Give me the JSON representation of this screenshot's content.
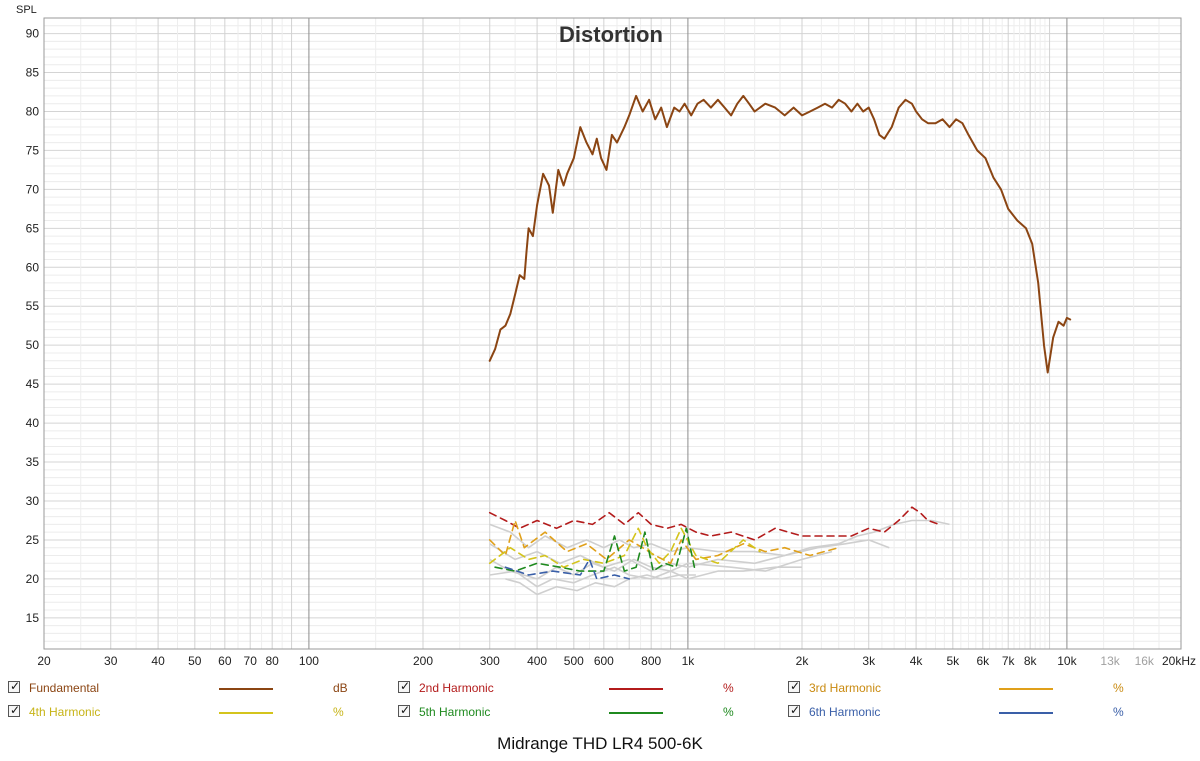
{
  "chart_data": {
    "type": "line",
    "title": "Distortion",
    "ylabel": "SPL",
    "xlabel": "",
    "x_scale": "log",
    "xlim": [
      20,
      20000
    ],
    "ylim": [
      11,
      92
    ],
    "grid": true,
    "x_ticks": [
      {
        "v": 20,
        "label": "20"
      },
      {
        "v": 30,
        "label": "30"
      },
      {
        "v": 40,
        "label": "40"
      },
      {
        "v": 50,
        "label": "50"
      },
      {
        "v": 60,
        "label": "60"
      },
      {
        "v": 70,
        "label": "70"
      },
      {
        "v": 80,
        "label": "80"
      },
      {
        "v": 100,
        "label": "100"
      },
      {
        "v": 200,
        "label": "200"
      },
      {
        "v": 300,
        "label": "300"
      },
      {
        "v": 400,
        "label": "400"
      },
      {
        "v": 500,
        "label": "500"
      },
      {
        "v": 600,
        "label": "600"
      },
      {
        "v": 800,
        "label": "800"
      },
      {
        "v": 1000,
        "label": "1k"
      },
      {
        "v": 2000,
        "label": "2k"
      },
      {
        "v": 3000,
        "label": "3k"
      },
      {
        "v": 4000,
        "label": "4k"
      },
      {
        "v": 5000,
        "label": "5k"
      },
      {
        "v": 6000,
        "label": "6k"
      },
      {
        "v": 7000,
        "label": "7k"
      },
      {
        "v": 8000,
        "label": "8k"
      },
      {
        "v": 10000,
        "label": "10k"
      },
      {
        "v": 13000,
        "label": "13k",
        "faded": true
      },
      {
        "v": 16000,
        "label": "16k",
        "faded": true
      },
      {
        "v": 20000,
        "label": "20kHz"
      }
    ],
    "y_ticks": [
      15,
      20,
      25,
      30,
      35,
      40,
      45,
      50,
      55,
      60,
      65,
      70,
      75,
      80,
      85,
      90
    ],
    "series": [
      {
        "name": "Fundamental",
        "unit": "dB",
        "color": "#8b4513",
        "style": "solid",
        "points": [
          [
            300,
            48
          ],
          [
            310,
            49.5
          ],
          [
            320,
            52
          ],
          [
            330,
            52.5
          ],
          [
            340,
            54
          ],
          [
            350,
            56.5
          ],
          [
            360,
            59
          ],
          [
            370,
            58.5
          ],
          [
            375,
            62
          ],
          [
            380,
            65
          ],
          [
            390,
            64
          ],
          [
            400,
            68
          ],
          [
            415,
            72
          ],
          [
            430,
            70.5
          ],
          [
            440,
            67
          ],
          [
            455,
            72.5
          ],
          [
            470,
            70.5
          ],
          [
            480,
            72
          ],
          [
            500,
            74
          ],
          [
            520,
            78
          ],
          [
            540,
            76
          ],
          [
            560,
            74.5
          ],
          [
            575,
            76.5
          ],
          [
            590,
            74
          ],
          [
            610,
            72.5
          ],
          [
            630,
            77
          ],
          [
            650,
            76
          ],
          [
            680,
            78
          ],
          [
            700,
            79.5
          ],
          [
            730,
            82
          ],
          [
            760,
            80
          ],
          [
            790,
            81.5
          ],
          [
            820,
            79
          ],
          [
            850,
            80.5
          ],
          [
            880,
            78
          ],
          [
            920,
            80.5
          ],
          [
            950,
            80
          ],
          [
            980,
            81
          ],
          [
            1020,
            79.5
          ],
          [
            1060,
            81
          ],
          [
            1100,
            81.5
          ],
          [
            1150,
            80.5
          ],
          [
            1200,
            81.5
          ],
          [
            1250,
            80.5
          ],
          [
            1300,
            79.5
          ],
          [
            1350,
            81
          ],
          [
            1400,
            82
          ],
          [
            1450,
            81
          ],
          [
            1500,
            80
          ],
          [
            1600,
            81
          ],
          [
            1700,
            80.5
          ],
          [
            1800,
            79.5
          ],
          [
            1900,
            80.5
          ],
          [
            2000,
            79.5
          ],
          [
            2100,
            80
          ],
          [
            2200,
            80.5
          ],
          [
            2300,
            81
          ],
          [
            2400,
            80.5
          ],
          [
            2500,
            81.5
          ],
          [
            2600,
            81
          ],
          [
            2700,
            80
          ],
          [
            2800,
            81
          ],
          [
            2900,
            80
          ],
          [
            3000,
            80.5
          ],
          [
            3100,
            79
          ],
          [
            3200,
            77
          ],
          [
            3300,
            76.5
          ],
          [
            3450,
            78
          ],
          [
            3600,
            80.5
          ],
          [
            3750,
            81.5
          ],
          [
            3900,
            81
          ],
          [
            4000,
            80
          ],
          [
            4150,
            79
          ],
          [
            4300,
            78.5
          ],
          [
            4500,
            78.5
          ],
          [
            4700,
            79
          ],
          [
            4900,
            78
          ],
          [
            5100,
            79
          ],
          [
            5300,
            78.5
          ],
          [
            5500,
            77
          ],
          [
            5800,
            75
          ],
          [
            6100,
            74
          ],
          [
            6400,
            71.5
          ],
          [
            6700,
            70
          ],
          [
            7000,
            67.5
          ],
          [
            7400,
            66
          ],
          [
            7800,
            65
          ],
          [
            8100,
            63
          ],
          [
            8400,
            58
          ],
          [
            8700,
            50
          ],
          [
            8900,
            46.5
          ],
          [
            9200,
            51
          ],
          [
            9500,
            53
          ],
          [
            9800,
            52.5
          ],
          [
            10000,
            53.5
          ],
          [
            10200,
            53.3
          ]
        ]
      },
      {
        "name": "2nd Harmonic",
        "unit": "%",
        "color": "#b31b1b",
        "style": "dashed",
        "points": [
          [
            300,
            28.5
          ],
          [
            330,
            27.5
          ],
          [
            360,
            26.5
          ],
          [
            400,
            27.5
          ],
          [
            450,
            26.5
          ],
          [
            500,
            27.5
          ],
          [
            560,
            27
          ],
          [
            620,
            28.5
          ],
          [
            680,
            27
          ],
          [
            740,
            28.5
          ],
          [
            800,
            27
          ],
          [
            880,
            26.5
          ],
          [
            960,
            27
          ],
          [
            1050,
            26
          ],
          [
            1150,
            25.5
          ],
          [
            1300,
            26
          ],
          [
            1500,
            25
          ],
          [
            1700,
            26.5
          ],
          [
            2000,
            25.5
          ],
          [
            2300,
            25.5
          ],
          [
            2700,
            25.5
          ],
          [
            3000,
            26.5
          ],
          [
            3300,
            26
          ],
          [
            3600,
            27.5
          ],
          [
            3900,
            29.2
          ],
          [
            4100,
            28.5
          ],
          [
            4300,
            27.5
          ],
          [
            4600,
            27
          ]
        ]
      },
      {
        "name": "3rd Harmonic",
        "unit": "%",
        "color": "#e0a01a",
        "style": "dashed",
        "points": [
          [
            300,
            25
          ],
          [
            330,
            23
          ],
          [
            350,
            27.5
          ],
          [
            370,
            24
          ],
          [
            420,
            26
          ],
          [
            480,
            23.5
          ],
          [
            540,
            24.5
          ],
          [
            610,
            22.5
          ],
          [
            700,
            25
          ],
          [
            760,
            24
          ],
          [
            820,
            23
          ],
          [
            900,
            22
          ],
          [
            960,
            25
          ],
          [
            1050,
            22.5
          ],
          [
            1200,
            23
          ],
          [
            1400,
            24.5
          ],
          [
            1600,
            23.5
          ],
          [
            1800,
            24
          ],
          [
            2100,
            23
          ],
          [
            2500,
            24
          ]
        ]
      },
      {
        "name": "4th Harmonic",
        "unit": "%",
        "color": "#d4c41c",
        "style": "dashed",
        "points": [
          [
            300,
            22
          ],
          [
            340,
            24
          ],
          [
            380,
            22.5
          ],
          [
            420,
            23
          ],
          [
            470,
            21.5
          ],
          [
            530,
            22.5
          ],
          [
            600,
            22
          ],
          [
            680,
            23
          ],
          [
            740,
            26.5
          ],
          [
            780,
            24
          ],
          [
            840,
            22
          ],
          [
            900,
            23.5
          ],
          [
            960,
            26.5
          ],
          [
            1050,
            23
          ],
          [
            1200,
            22
          ],
          [
            1400,
            25
          ],
          [
            1550,
            23.5
          ]
        ]
      },
      {
        "name": "5th Harmonic",
        "unit": "%",
        "color": "#1f8a1f",
        "style": "dashed",
        "points": [
          [
            310,
            21.5
          ],
          [
            350,
            21
          ],
          [
            400,
            22
          ],
          [
            460,
            21.5
          ],
          [
            520,
            21
          ],
          [
            600,
            21
          ],
          [
            640,
            25.5
          ],
          [
            680,
            21
          ],
          [
            730,
            21.5
          ],
          [
            770,
            26
          ],
          [
            810,
            21
          ],
          [
            870,
            22
          ],
          [
            930,
            21.5
          ],
          [
            990,
            26.5
          ],
          [
            1040,
            21.5
          ]
        ]
      },
      {
        "name": "6th Harmonic",
        "unit": "%",
        "color": "#3a5fa8",
        "style": "dashed",
        "points": [
          [
            330,
            21.5
          ],
          [
            380,
            20.5
          ],
          [
            440,
            21
          ],
          [
            520,
            20.5
          ],
          [
            550,
            22.5
          ],
          [
            575,
            20
          ],
          [
            640,
            20.5
          ],
          [
            700,
            20
          ]
        ]
      }
    ],
    "background_traces": [
      [
        [
          300,
          27
        ],
        [
          340,
          26
        ],
        [
          380,
          24
        ],
        [
          420,
          25.5
        ],
        [
          480,
          24
        ],
        [
          540,
          25
        ],
        [
          600,
          24
        ],
        [
          660,
          25
        ],
        [
          720,
          24
        ],
        [
          800,
          24.5
        ],
        [
          900,
          23.5
        ],
        [
          1000,
          24
        ],
        [
          1200,
          23.5
        ],
        [
          1500,
          23.5
        ],
        [
          1800,
          23
        ],
        [
          2100,
          24
        ],
        [
          2500,
          24.5
        ],
        [
          2800,
          25.5
        ],
        [
          3100,
          26
        ],
        [
          3500,
          27
        ],
        [
          3900,
          27.5
        ],
        [
          4400,
          27.5
        ],
        [
          4900,
          27
        ]
      ],
      [
        [
          300,
          24.5
        ],
        [
          350,
          22.5
        ],
        [
          400,
          23.5
        ],
        [
          460,
          22
        ],
        [
          520,
          23
        ],
        [
          600,
          21.5
        ],
        [
          700,
          22.5
        ],
        [
          800,
          21
        ],
        [
          900,
          22
        ],
        [
          1000,
          21.5
        ],
        [
          1200,
          22.5
        ],
        [
          1500,
          22
        ],
        [
          1800,
          23
        ],
        [
          2200,
          24
        ],
        [
          2600,
          24.5
        ],
        [
          3000,
          25
        ],
        [
          3400,
          24
        ]
      ],
      [
        [
          300,
          22.5
        ],
        [
          340,
          21
        ],
        [
          400,
          20
        ],
        [
          450,
          21.5
        ],
        [
          500,
          20.5
        ],
        [
          560,
          22
        ],
        [
          640,
          21
        ],
        [
          720,
          22.5
        ],
        [
          800,
          21.5
        ],
        [
          900,
          21
        ],
        [
          1000,
          22
        ],
        [
          1300,
          21.5
        ],
        [
          1600,
          21
        ],
        [
          2000,
          22.5
        ],
        [
          2400,
          23.5
        ]
      ],
      [
        [
          300,
          20.5
        ],
        [
          350,
          21
        ],
        [
          400,
          19
        ],
        [
          440,
          20
        ],
        [
          500,
          19.5
        ],
        [
          560,
          20.5
        ],
        [
          640,
          21.5
        ],
        [
          700,
          20.5
        ],
        [
          800,
          20
        ],
        [
          900,
          21
        ],
        [
          1000,
          20
        ],
        [
          1200,
          21
        ],
        [
          1400,
          21
        ],
        [
          1700,
          21.5
        ],
        [
          2000,
          21.5
        ]
      ],
      [
        [
          330,
          20
        ],
        [
          360,
          19.5
        ],
        [
          400,
          18
        ],
        [
          450,
          19
        ],
        [
          510,
          18.5
        ],
        [
          570,
          19.5
        ],
        [
          640,
          19
        ],
        [
          700,
          20
        ],
        [
          780,
          20.5
        ],
        [
          850,
          20
        ],
        [
          950,
          20.5
        ],
        [
          1050,
          20.5
        ]
      ]
    ]
  },
  "legend": [
    {
      "name": "Fundamental",
      "unit": "dB",
      "color": "#8b4513",
      "text_color": "#8b4513"
    },
    {
      "name": "2nd Harmonic",
      "unit": "%",
      "color": "#b31b1b",
      "text_color": "#b31b1b"
    },
    {
      "name": "3rd Harmonic",
      "unit": "%",
      "color": "#e0a01a",
      "text_color": "#c98a10"
    },
    {
      "name": "4th Harmonic",
      "unit": "%",
      "color": "#d4c41c",
      "text_color": "#c7b417"
    },
    {
      "name": "5th Harmonic",
      "unit": "%",
      "color": "#1f8a1f",
      "text_color": "#1f8a1f"
    },
    {
      "name": "6th Harmonic",
      "unit": "%",
      "color": "#3a5fa8",
      "text_color": "#3a5fa8"
    }
  ],
  "footer": "Midrange THD LR4 500-6K"
}
